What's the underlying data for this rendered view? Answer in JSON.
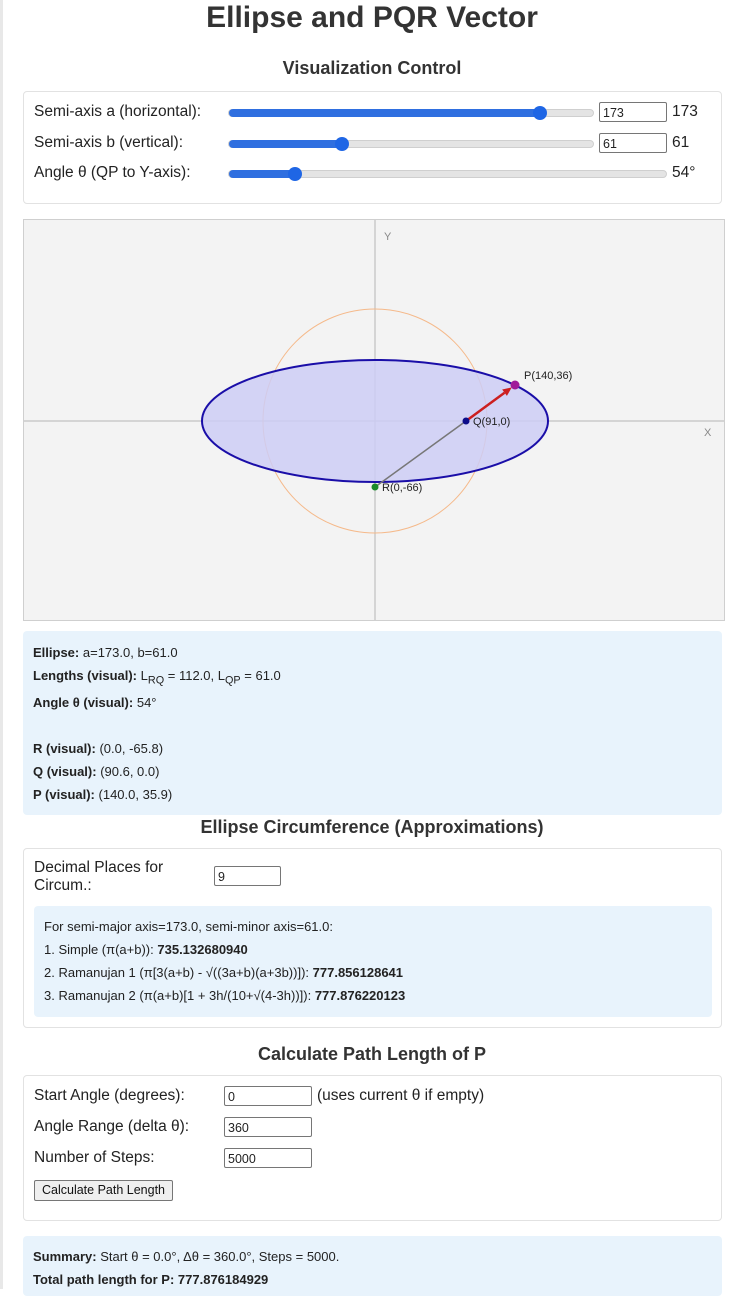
{
  "title": "Ellipse and PQR Vector",
  "controls": {
    "heading": "Visualization Control",
    "semi_a": {
      "label": "Semi-axis a (horizontal):",
      "input": "173",
      "value": "173",
      "fraction": 0.85
    },
    "semi_b": {
      "label": "Semi-axis b (vertical):",
      "input": "61",
      "value": "61",
      "fraction": 0.31
    },
    "angle": {
      "label": "Angle θ (QP to Y-axis):",
      "value": "54°",
      "fraction": 0.15
    }
  },
  "canvas": {
    "axis_y": "Y",
    "axis_x": "X",
    "colors": {
      "ellipse_fill": "#ccccf5",
      "ellipse_stroke": "#1a0ea8",
      "circle": "#f5b98a",
      "arrow": "#cc1f1f",
      "p": "#a01a9a",
      "q": "#0d0d8a",
      "r": "#1a8a2a"
    },
    "points": {
      "p": {
        "label": "P(140,36)",
        "x": 140,
        "y": 36
      },
      "q": {
        "label": "Q(91,0)",
        "x": 91,
        "y": 0
      },
      "r": {
        "label": "R(0,-66)",
        "x": 0,
        "y": -66
      }
    },
    "ellipse": {
      "a": 173,
      "b": 61
    },
    "circle_radius": 112
  },
  "visual_info": {
    "ellipse_label": "Ellipse:",
    "ellipse_value": "a=173.0, b=61.0",
    "lengths_label": "Lengths (visual):",
    "lengths_l1": "L",
    "lengths_s1": "RQ",
    "lengths_v1": "= 112.0, ",
    "lengths_l2": "L",
    "lengths_s2": "QP",
    "lengths_v2": "= 61.0",
    "angle_label": "Angle θ (visual):",
    "angle_value": "54°",
    "r_label": "R (visual):",
    "r_value": "(0.0, -65.8)",
    "q_label": "Q (visual):",
    "q_value": "(90.6, 0.0)",
    "p_label": "P (visual):",
    "p_value": "(140.0, 35.9)"
  },
  "circumference": {
    "heading": "Ellipse Circumference (Approximations)",
    "decimal_label_1": "Decimal Places for",
    "decimal_label_2": "Circum.:",
    "decimal_value": "9",
    "intro": "For semi-major axis=173.0, semi-minor axis=61.0:",
    "item1_label": "1. Simple (π(a+b)): ",
    "item1_value": "735.132680940",
    "item2_label": "2. Ramanujan 1 (π[3(a+b) - √((3a+b)(a+3b))]): ",
    "item2_value": "777.856128641",
    "item3_label": "3. Ramanujan 2 (π(a+b)[1 + 3h/(10+√(4-3h))]): ",
    "item3_value": "777.876220123"
  },
  "path": {
    "heading": "Calculate Path Length of P",
    "start_label": "Start Angle (degrees):",
    "start_value": "0",
    "start_hint": "(uses current θ if empty)",
    "range_label": "Angle Range (delta θ):",
    "range_value": "360",
    "steps_label": "Number of Steps:",
    "steps_value": "5000",
    "button": "Calculate Path Length"
  },
  "summary": {
    "label": "Summary:",
    "text": " Start θ = 0.0°, Δθ = 360.0°, Steps = 5000.",
    "total": "Total path length for P: 777.876184929"
  }
}
